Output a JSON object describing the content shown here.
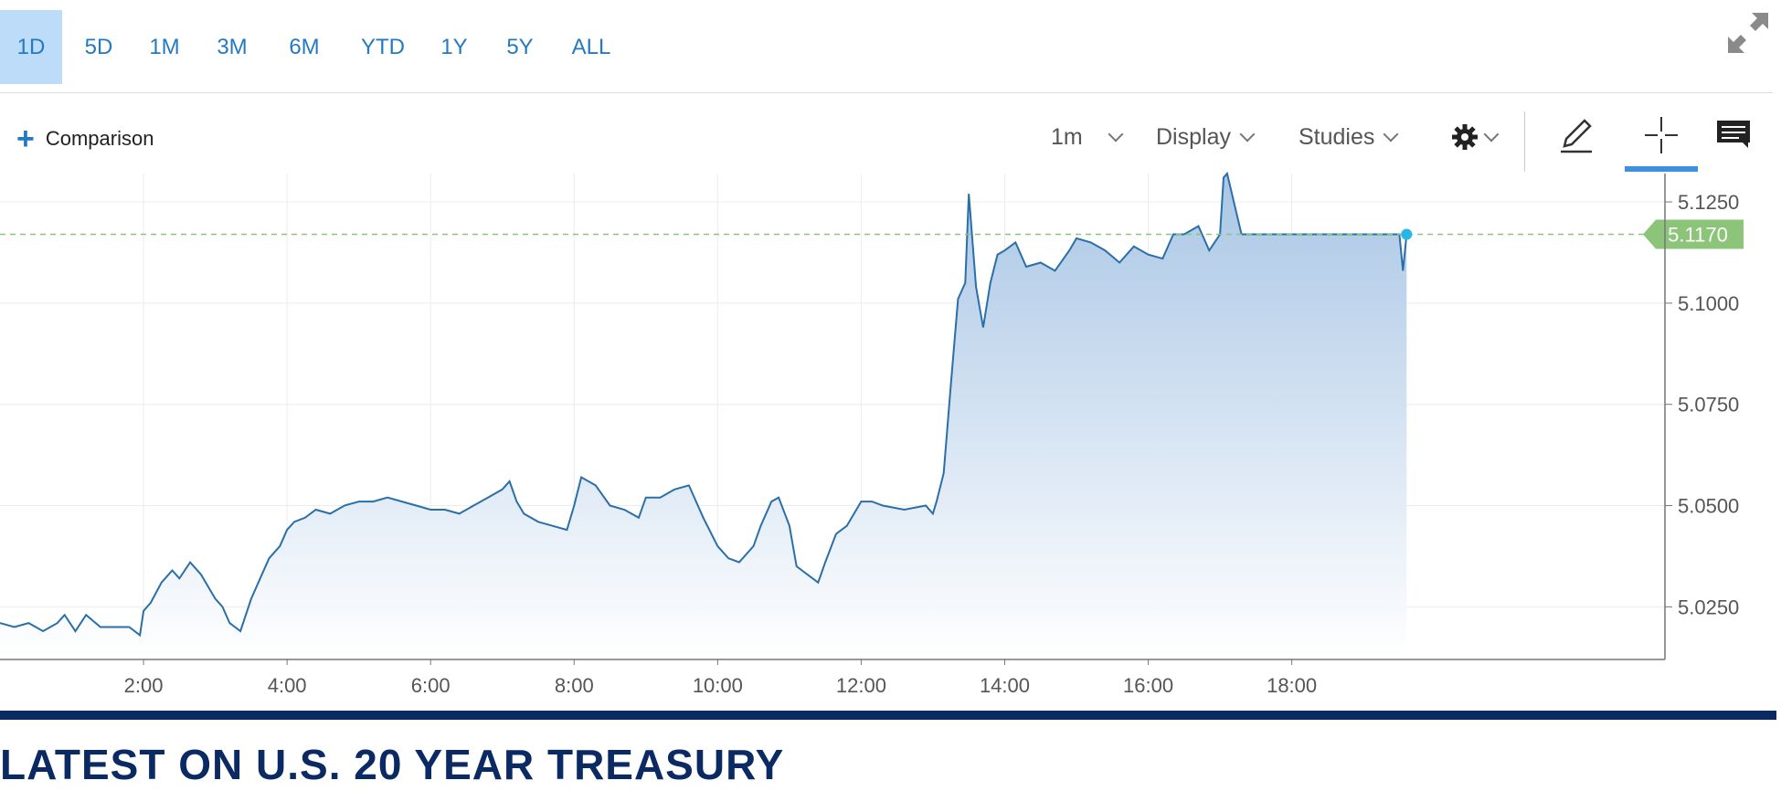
{
  "range_tabs": [
    {
      "label": "1D",
      "active": true
    },
    {
      "label": "5D",
      "active": false
    },
    {
      "label": "1M",
      "active": false
    },
    {
      "label": "3M",
      "active": false
    },
    {
      "label": "6M",
      "active": false
    },
    {
      "label": "YTD",
      "active": false
    },
    {
      "label": "1Y",
      "active": false
    },
    {
      "label": "5Y",
      "active": false
    },
    {
      "label": "ALL",
      "active": false
    }
  ],
  "toolbar": {
    "comparison_label": "Comparison",
    "interval_label": "1m",
    "display_label": "Display",
    "studies_label": "Studies",
    "icons": [
      "settings-gear-icon",
      "draw-pencil-icon",
      "crosshair-icon",
      "comment-icon",
      "expand-icon"
    ]
  },
  "colors": {
    "accent": "#2479c2",
    "active_tab_bg": "#bcdcf9",
    "line": "#2a6fa8",
    "fill_top": "#a9c6e5",
    "fill_bottom": "#ffffff",
    "current_price_tag": "#8cc47a",
    "current_price_dot": "#27b6e8",
    "heading": "#0b2a63"
  },
  "chart_data": {
    "type": "area",
    "title": "",
    "xlabel": "",
    "ylabel": "",
    "x_unit": "hours",
    "x_range": [
      0,
      23.2
    ],
    "ylim": [
      5.012,
      5.132
    ],
    "x_ticks": [
      {
        "x": 2,
        "label": "2:00"
      },
      {
        "x": 4,
        "label": "4:00"
      },
      {
        "x": 6,
        "label": "6:00"
      },
      {
        "x": 8,
        "label": "8:00"
      },
      {
        "x": 10,
        "label": "10:00"
      },
      {
        "x": 12,
        "label": "12:00"
      },
      {
        "x": 14,
        "label": "14:00"
      },
      {
        "x": 16,
        "label": "16:00"
      },
      {
        "x": 18,
        "label": "18:00"
      }
    ],
    "y_ticks": [
      {
        "y": 5.125,
        "label": "5.1250"
      },
      {
        "y": 5.1,
        "label": "5.1000"
      },
      {
        "y": 5.075,
        "label": "5.0750"
      },
      {
        "y": 5.05,
        "label": "5.0500"
      },
      {
        "y": 5.025,
        "label": "5.0250"
      }
    ],
    "grid": true,
    "current_value": 5.117,
    "current_value_label": "5.1170",
    "series": [
      {
        "x": [
          0.0,
          0.2,
          0.4,
          0.6,
          0.8,
          0.9,
          1.05,
          1.2,
          1.4,
          1.6,
          1.8,
          1.95,
          2.0,
          2.1,
          2.25,
          2.4,
          2.5,
          2.65,
          2.8,
          3.0,
          3.1,
          3.2,
          3.35,
          3.5,
          3.6,
          3.75,
          3.9,
          4.0,
          4.1,
          4.25,
          4.4,
          4.6,
          4.8,
          5.0,
          5.2,
          5.4,
          5.6,
          5.8,
          6.0,
          6.2,
          6.4,
          6.6,
          6.8,
          7.0,
          7.1,
          7.2,
          7.3,
          7.5,
          7.7,
          7.9,
          8.0,
          8.1,
          8.3,
          8.5,
          8.7,
          8.9,
          9.0,
          9.2,
          9.4,
          9.6,
          9.8,
          10.0,
          10.15,
          10.3,
          10.5,
          10.6,
          10.75,
          10.85,
          11.0,
          11.1,
          11.25,
          11.4,
          11.5,
          11.65,
          11.8,
          12.0,
          12.15,
          12.3,
          12.6,
          12.9,
          13.0,
          13.05,
          13.15,
          13.25,
          13.35,
          13.45,
          13.5,
          13.6,
          13.7,
          13.8,
          13.9,
          14.0,
          14.15,
          14.3,
          14.5,
          14.7,
          14.9,
          15.0,
          15.2,
          15.4,
          15.6,
          15.8,
          16.0,
          16.2,
          16.35,
          16.5,
          16.7,
          16.85,
          17.0,
          17.05,
          17.1,
          17.3,
          17.6,
          18.0,
          18.4,
          18.8,
          19.0,
          19.2,
          19.5,
          19.55,
          19.6
        ],
        "values": [
          5.021,
          5.02,
          5.021,
          5.019,
          5.021,
          5.023,
          5.019,
          5.023,
          5.02,
          5.02,
          5.02,
          5.018,
          5.024,
          5.026,
          5.031,
          5.034,
          5.032,
          5.036,
          5.033,
          5.027,
          5.025,
          5.021,
          5.019,
          5.027,
          5.031,
          5.037,
          5.04,
          5.044,
          5.046,
          5.047,
          5.049,
          5.048,
          5.05,
          5.051,
          5.051,
          5.052,
          5.051,
          5.05,
          5.049,
          5.049,
          5.048,
          5.05,
          5.052,
          5.054,
          5.056,
          5.051,
          5.048,
          5.046,
          5.045,
          5.044,
          5.05,
          5.057,
          5.055,
          5.05,
          5.049,
          5.047,
          5.052,
          5.052,
          5.054,
          5.055,
          5.047,
          5.04,
          5.037,
          5.036,
          5.04,
          5.045,
          5.051,
          5.052,
          5.045,
          5.035,
          5.033,
          5.031,
          5.036,
          5.043,
          5.045,
          5.051,
          5.051,
          5.05,
          5.049,
          5.05,
          5.048,
          5.051,
          5.058,
          5.08,
          5.101,
          5.105,
          5.127,
          5.104,
          5.094,
          5.105,
          5.112,
          5.113,
          5.115,
          5.109,
          5.11,
          5.108,
          5.113,
          5.116,
          5.115,
          5.113,
          5.11,
          5.114,
          5.112,
          5.111,
          5.117,
          5.117,
          5.119,
          5.113,
          5.117,
          5.131,
          5.132,
          5.117,
          5.117,
          5.117,
          5.117,
          5.117,
          5.117,
          5.117,
          5.117,
          5.108,
          5.117
        ]
      }
    ]
  },
  "footer": {
    "heading": "LATEST ON U.S. 20 YEAR TREASURY"
  }
}
